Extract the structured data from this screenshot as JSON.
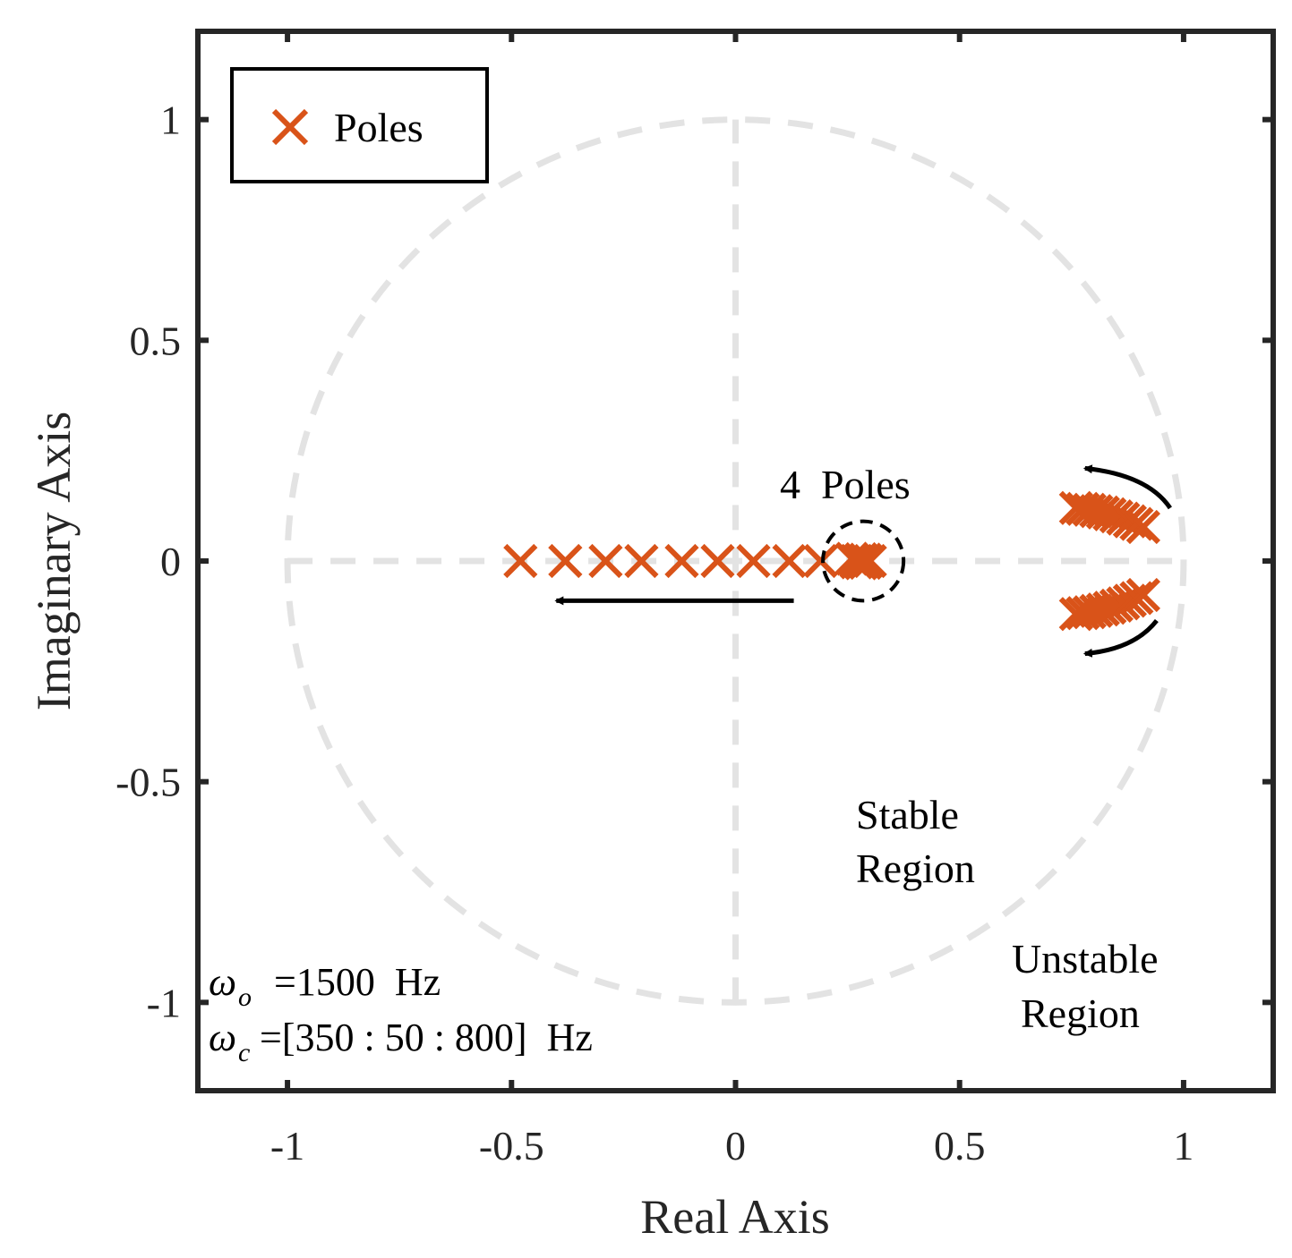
{
  "chart_data": {
    "type": "scatter",
    "xlabel": "Real Axis",
    "ylabel": "Imaginary Axis",
    "xlim": [
      -1.2,
      1.2
    ],
    "ylim": [
      -1.2,
      1.2
    ],
    "xticks": [
      -1,
      -0.5,
      0,
      0.5,
      1
    ],
    "xtick_labels": [
      "-1",
      "-0.5",
      "0",
      "0.5",
      "1"
    ],
    "yticks": [
      -1,
      -0.5,
      0,
      0.5,
      1
    ],
    "ytick_labels": [
      "-1",
      "-0.5",
      "0",
      "0.5",
      "1"
    ],
    "grid": false,
    "unit_circle": true,
    "legend": {
      "entries": [
        "Poles"
      ],
      "location": "top-left"
    },
    "series": [
      {
        "name": "Poles",
        "color": "#D95319",
        "marker": "x",
        "points": [
          {
            "x": -0.48,
            "y": 0
          },
          {
            "x": -0.38,
            "y": 0
          },
          {
            "x": -0.29,
            "y": 0
          },
          {
            "x": -0.21,
            "y": 0
          },
          {
            "x": -0.12,
            "y": 0
          },
          {
            "x": -0.04,
            "y": 0
          },
          {
            "x": 0.04,
            "y": 0
          },
          {
            "x": 0.12,
            "y": 0
          },
          {
            "x": 0.19,
            "y": 0
          },
          {
            "x": 0.27,
            "y": 0
          },
          {
            "x": 0.26,
            "y": 0.005
          },
          {
            "x": 0.27,
            "y": 0.0
          },
          {
            "x": 0.28,
            "y": -0.005
          },
          {
            "x": 0.29,
            "y": 0.003
          },
          {
            "x": 0.27,
            "y": -0.003
          },
          {
            "x": 0.28,
            "y": 0.004
          },
          {
            "x": 0.29,
            "y": -0.004
          },
          {
            "x": 0.3,
            "y": 0.0
          },
          {
            "x": 0.76,
            "y": 0.12
          },
          {
            "x": 0.775,
            "y": 0.118
          },
          {
            "x": 0.79,
            "y": 0.116
          },
          {
            "x": 0.805,
            "y": 0.113
          },
          {
            "x": 0.82,
            "y": 0.11
          },
          {
            "x": 0.835,
            "y": 0.106
          },
          {
            "x": 0.85,
            "y": 0.101
          },
          {
            "x": 0.865,
            "y": 0.096
          },
          {
            "x": 0.88,
            "y": 0.09
          },
          {
            "x": 0.895,
            "y": 0.084
          },
          {
            "x": 0.91,
            "y": 0.077
          },
          {
            "x": 0.76,
            "y": -0.12
          },
          {
            "x": 0.775,
            "y": -0.118
          },
          {
            "x": 0.79,
            "y": -0.116
          },
          {
            "x": 0.805,
            "y": -0.113
          },
          {
            "x": 0.82,
            "y": -0.11
          },
          {
            "x": 0.835,
            "y": -0.106
          },
          {
            "x": 0.85,
            "y": -0.101
          },
          {
            "x": 0.865,
            "y": -0.096
          },
          {
            "x": 0.88,
            "y": -0.09
          },
          {
            "x": 0.895,
            "y": -0.084
          },
          {
            "x": 0.91,
            "y": -0.077
          }
        ]
      }
    ],
    "annotations": {
      "four_poles": "4  Poles",
      "stable_line1": "Stable",
      "stable_line2": "Region",
      "unstable_line1": "Unstable",
      "unstable_line2": "Region",
      "wo_symbol": "ω",
      "wo_sub": "o",
      "wo_rhs": "=1500  Hz",
      "wc_symbol": "ω",
      "wc_sub": "c",
      "wc_rhs": "=[350 : 50 : 800]  Hz"
    }
  }
}
